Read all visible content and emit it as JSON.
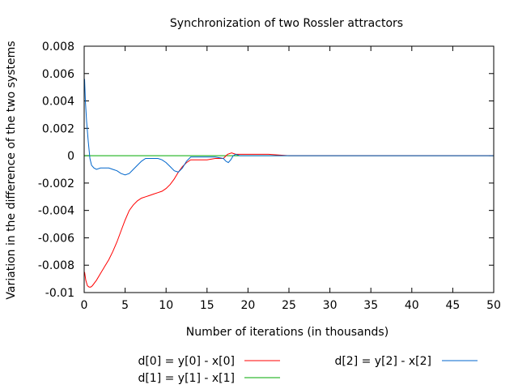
{
  "chart_data": {
    "type": "line",
    "title": "Synchronization of two Rossler attractors",
    "xlabel": "Number of iterations (in thousands)",
    "ylabel": "Variation in the difference of the two systems",
    "xlim": [
      0,
      50
    ],
    "ylim": [
      -0.01,
      0.008
    ],
    "xticks": [
      0,
      5,
      10,
      15,
      20,
      25,
      30,
      35,
      40,
      45,
      50
    ],
    "yticks": [
      -0.01,
      -0.008,
      -0.006,
      -0.004,
      -0.002,
      0,
      0.002,
      0.004,
      0.006,
      0.008
    ],
    "xtick_labels": [
      "0",
      "5",
      "10",
      "15",
      "20",
      "25",
      "30",
      "35",
      "40",
      "45",
      "50"
    ],
    "ytick_labels": [
      "-0.01",
      "-0.008",
      "-0.006",
      "-0.004",
      "-0.002",
      "0",
      "0.002",
      "0.004",
      "0.006",
      "0.008"
    ],
    "grid": false,
    "legend_position": "bottom",
    "series": [
      {
        "name": "d[0] = y[0] - x[0]",
        "color": "#ff0000",
        "x": [
          0.05,
          0.2,
          0.4,
          0.6,
          0.8,
          1.0,
          1.5,
          2.0,
          2.5,
          3.0,
          3.5,
          4.0,
          4.5,
          5.0,
          5.5,
          6.0,
          6.5,
          7.0,
          7.5,
          8.0,
          8.5,
          9.0,
          9.5,
          10.0,
          10.5,
          11.0,
          11.5,
          12.0,
          12.5,
          13.0,
          14.0,
          15.0,
          16.0,
          17.0,
          17.5,
          18.0,
          18.5,
          19.0,
          20.0,
          21.0,
          22.5,
          25.0,
          30.0,
          35.0,
          40.0,
          45.0,
          50.0
        ],
        "values": [
          -0.0085,
          -0.0091,
          -0.0095,
          -0.0096,
          -0.0096,
          -0.0095,
          -0.0091,
          -0.0086,
          -0.0081,
          -0.0076,
          -0.007,
          -0.0063,
          -0.0055,
          -0.0047,
          -0.004,
          -0.0036,
          -0.0033,
          -0.0031,
          -0.003,
          -0.0029,
          -0.0028,
          -0.0027,
          -0.0026,
          -0.0024,
          -0.0021,
          -0.0017,
          -0.0012,
          -0.0008,
          -0.0005,
          -0.0003,
          -0.0003,
          -0.0003,
          -0.0002,
          -0.0002,
          0.0001,
          0.0002,
          0.0001,
          0.0001,
          0.0001,
          0.0001,
          0.0001,
          0.0,
          0.0,
          0.0,
          0.0,
          0.0,
          0.0
        ]
      },
      {
        "name": "d[1] = y[1] - x[1]",
        "color": "#00aa00",
        "x": [
          0,
          50
        ],
        "values": [
          0.0,
          0.0
        ]
      },
      {
        "name": "d[2] = y[2] - x[2]",
        "color": "#0066cc",
        "x": [
          0.05,
          0.15,
          0.3,
          0.5,
          0.7,
          0.9,
          1.2,
          1.5,
          2.0,
          2.5,
          3.0,
          3.5,
          4.0,
          4.5,
          5.0,
          5.5,
          6.0,
          6.5,
          7.0,
          7.5,
          8.0,
          8.5,
          9.0,
          9.5,
          10.0,
          10.5,
          11.0,
          11.5,
          12.0,
          12.5,
          13.0,
          14.0,
          15.0,
          16.0,
          17.0,
          17.3,
          17.6,
          17.9,
          18.2,
          18.5,
          19.0,
          20.0,
          25.0,
          30.0,
          35.0,
          40.0,
          45.0,
          50.0
        ],
        "values": [
          0.0056,
          0.004,
          0.0025,
          0.001,
          -0.0002,
          -0.0007,
          -0.0009,
          -0.001,
          -0.0009,
          -0.0009,
          -0.0009,
          -0.001,
          -0.0011,
          -0.0013,
          -0.0014,
          -0.0013,
          -0.001,
          -0.0007,
          -0.0004,
          -0.0002,
          -0.0002,
          -0.0002,
          -0.0002,
          -0.0003,
          -0.0005,
          -0.0008,
          -0.0011,
          -0.0012,
          -0.0009,
          -0.0004,
          -0.0001,
          -0.0001,
          -0.0001,
          -0.0001,
          -0.0002,
          -0.0004,
          -0.0005,
          -0.0003,
          0.0,
          0.0001,
          0.0,
          0.0,
          0.0,
          0.0,
          0.0,
          0.0,
          0.0,
          0.0
        ]
      }
    ]
  }
}
